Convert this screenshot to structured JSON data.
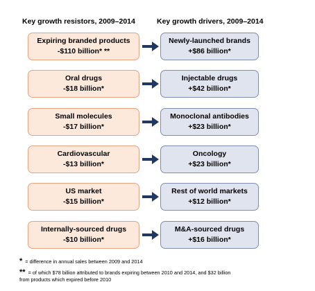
{
  "headers": {
    "left": "Key growth resistors, 2009–2014",
    "right": "Key growth drivers, 2009–2014"
  },
  "rows": [
    {
      "resistor": {
        "label": "Expiring branded products",
        "value": "-$110 billion* **"
      },
      "driver": {
        "label": "Newly-launched brands",
        "value": "+$86 billion*"
      }
    },
    {
      "resistor": {
        "label": "Oral drugs",
        "value": "-$18 billion*"
      },
      "driver": {
        "label": "Injectable drugs",
        "value": "+$42 billion*"
      }
    },
    {
      "resistor": {
        "label": "Small molecules",
        "value": "-$17 billion*"
      },
      "driver": {
        "label": "Monoclonal antibodies",
        "value": "+$23 billion*"
      }
    },
    {
      "resistor": {
        "label": "Cardiovascular",
        "value": "-$13 billion*"
      },
      "driver": {
        "label": "Oncology",
        "value": "+$23 billion*"
      }
    },
    {
      "resistor": {
        "label": "US market",
        "value": "-$15 billion*"
      },
      "driver": {
        "label": "Rest of world markets",
        "value": "+$12 billion*"
      }
    },
    {
      "resistor": {
        "label": "Internally-sourced drugs",
        "value": "-$10 billion*"
      },
      "driver": {
        "label": "M&A-sourced drugs",
        "value": "+$16 billion*"
      }
    }
  ],
  "footnotes": [
    {
      "symbol": "*",
      "lines": [
        "= difference in annual sales between 2009 and 2014"
      ]
    },
    {
      "symbol": "**",
      "lines": [
        "= of which $78 billion attributed to brands expiring between 2010 and 2014, and $32 billion",
        "from products which expired before 2010"
      ]
    }
  ]
}
